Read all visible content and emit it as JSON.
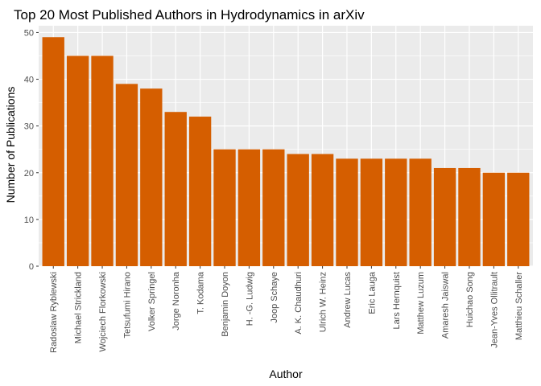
{
  "chart_data": {
    "type": "bar",
    "title": "Top 20 Most Published Authors in Hydrodynamics in arXiv",
    "xlabel": "Author",
    "ylabel": "Number of Publications",
    "categories": [
      "Radoslaw Ryblewski",
      "Michael Strickland",
      "Wojciech Florkowski",
      "Tetsufumi Hirano",
      "Volker Springel",
      "Jorge Noronha",
      "T. Kodama",
      "Benjamin Doyon",
      "H. -G. Ludwig",
      "Joop Schaye",
      "A. K. Chaudhuri",
      "Ulrich W. Heinz",
      "Andrew Lucas",
      "Eric Lauga",
      "Lars Hernquist",
      "Matthew Luzum",
      "Amaresh Jaiswal",
      "Huichao Song",
      "Jean-Yves Ollitrault",
      "Matthieu Schaller"
    ],
    "values": [
      49,
      45,
      45,
      39,
      38,
      33,
      32,
      25,
      25,
      25,
      24,
      24,
      23,
      23,
      23,
      23,
      21,
      21,
      20,
      20
    ],
    "ylim": [
      0,
      51.45
    ],
    "yticks": [
      0,
      10,
      20,
      30,
      40,
      50
    ],
    "grid": true,
    "legend": "none",
    "colors": {
      "bar": "#D55E00",
      "panel": "#EBEBEB",
      "grid": "#FFFFFF"
    }
  }
}
